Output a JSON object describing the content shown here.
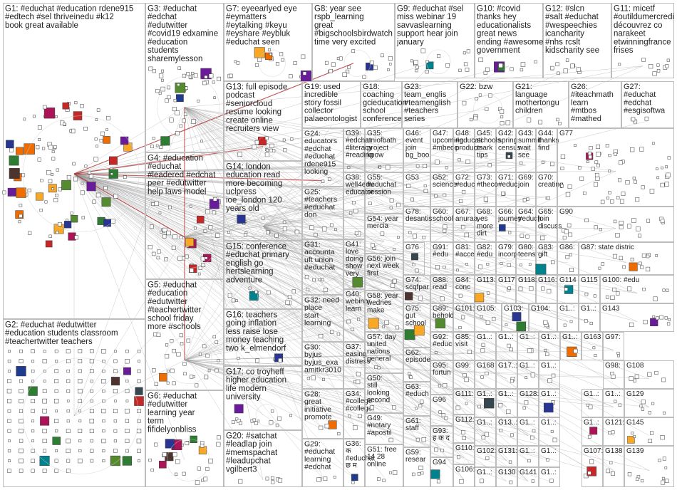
{
  "clusters": [
    {
      "id": "G1",
      "title": "G1: #educhat #education rdene915 #edtech #sel thriveinedu #k12 book great available"
    },
    {
      "id": "G2",
      "title": "G2: #educhat #edutwitter #education students classroom #teachertwitter teachers learning school support"
    },
    {
      "id": "G3",
      "title": "G3: #educhat #edchat #edutwitter #covid19 edxamine #education students sharemylesson teaching afteach"
    },
    {
      "id": "G4",
      "title": "G4: #education #educhat #leadered #edchat peer #edutwitter help laws model schools"
    },
    {
      "id": "G5",
      "title": "G5: #educhat #education #edutwitter #teachertwitter school friday more #schools #primary time"
    },
    {
      "id": "G6",
      "title": "G6: #educhat #edutwitter learning year term fifidelyonbliss remote emergency response last"
    },
    {
      "id": "G7",
      "title": "G7: eyeearlyed eye #eymatters #eytalking #keyu #eyshare #eybluk #educhat seen #teamec"
    },
    {
      "id": "G8",
      "title": "G8: year see rspb_learning great #bigschoolsbirdwatch time very excited flying start"
    },
    {
      "id": "G9",
      "title": "G9: #educhat #sel miss webinar 19 savvaslearning support hear join january"
    },
    {
      "id": "G10",
      "title": "G10: #covid thanks hey educationalists great news ending #awesome government"
    },
    {
      "id": "G11",
      "title": "G11: micetf #outildumercredi découvrez co narakeet etwinningfrance frises jdxmxojbde"
    },
    {
      "id": "G12",
      "title": "G12: #slcn #salt #educhat #wespeechies icancharity #nhs rcslt kidscharity see #mondaymotiv"
    },
    {
      "id": "G13",
      "title": "G13: full episode podcast #seniorcloud resume looking create online recruiters view"
    },
    {
      "id": "G14",
      "title": "G14: london education read more becoming uclpress ioe_london 120 years old"
    },
    {
      "id": "G15",
      "title": "G15: conference #educhat primary english go hertslearning adventure"
    },
    {
      "id": "G16",
      "title": "G16: teachers going inflation less raise lose money teaching two k_elmendorf"
    },
    {
      "id": "G17",
      "title": "G17: co troyheff higher education life modern university"
    },
    {
      "id": "G18",
      "title": "G18: coaching gcieducation school conference #educhat"
    },
    {
      "id": "G19",
      "title": "G19: used incredible story fossil collector palaeontologist mary anning"
    },
    {
      "id": "G20",
      "title": "G20: #satchat #leadlap join #memspachat #leadupchat vgilbert3"
    },
    {
      "id": "G21",
      "title": "G21: language mothertongu children experiences"
    },
    {
      "id": "G22",
      "title": "G22: bzw"
    },
    {
      "id": "G23",
      "title": "G23: team_englis #teamenglish #teachers series"
    },
    {
      "id": "G24",
      "title": "G24: educators #edchat #educhat rdene915 looking"
    },
    {
      "id": "G25",
      "title": "G25: #teachers #educhat don #teachers"
    },
    {
      "id": "G26",
      "title": "G26: #iteachmath learn #mtbos #mathed support"
    },
    {
      "id": "G27",
      "title": "G27: #educhat #edchat #esgisoftwa free"
    },
    {
      "id": "G28",
      "title": "G28: great initiative promote empathy"
    },
    {
      "id": "G29",
      "title": "G29: #educhat learning #edchat"
    },
    {
      "id": "G30",
      "title": "G30: byjus byjus_exa amitkr3010 eduminofi"
    },
    {
      "id": "G31",
      "title": "G31: accounta uft union #educhat"
    },
    {
      "id": "G32",
      "title": "G32: need place start learning watch"
    },
    {
      "id": "G33",
      "title": "G33: #educhat help hr demo"
    },
    {
      "id": "G34",
      "title": "G34: #college #collegel #educhat"
    },
    {
      "id": "G35",
      "title": "G35: uniofbath project know"
    },
    {
      "id": "G36",
      "title": "G36: क #educhat छ म महत व #bhent_r"
    },
    {
      "id": "G37",
      "title": "G37: easing distress australia"
    },
    {
      "id": "G38",
      "title": "G38: well4edu educator compass"
    },
    {
      "id": "G39",
      "title": "G39: #edchat #literacy #reading"
    },
    {
      "id": "G40",
      "title": "G40: webinar learn research"
    },
    {
      "id": "G41",
      "title": "G41: love doing show very lovely"
    },
    {
      "id": "G42",
      "title": "G42: spring census day"
    },
    {
      "id": "G43",
      "title": "G43: summit wait see rgv_tab"
    },
    {
      "id": "G44",
      "title": "G44: thanks find #teachp"
    },
    {
      "id": "G45",
      "title": "G45: schools mark tips 10th"
    },
    {
      "id": "G46",
      "title": "G46: event join bg_boo discuss"
    },
    {
      "id": "G47",
      "title": "G47: upcoming #mbedc wednes"
    },
    {
      "id": "G48",
      "title": "G48: #educati products help"
    },
    {
      "id": "G49",
      "title": "G49: #notary #apostil #apostil"
    },
    {
      "id": "G50",
      "title": "G50: still looking second school"
    },
    {
      "id": "G51",
      "title": "G51: free 14 28 online"
    },
    {
      "id": "G52",
      "title": "G52: science #educha"
    },
    {
      "id": "G53",
      "title": "G53"
    },
    {
      "id": "G54",
      "title": "G54: year mercia"
    },
    {
      "id": "G55",
      "title": "G55: #educhat session 6pm"
    },
    {
      "id": "G56",
      "title": "G56: join next week first"
    },
    {
      "id": "G57",
      "title": "G57: day united nations general"
    },
    {
      "id": "G58",
      "title": "G58: year wednes make"
    },
    {
      "id": "G59",
      "title": "G59: resear expect"
    },
    {
      "id": "G60",
      "title": "G60: school districts"
    },
    {
      "id": "G61",
      "title": "G61: staff time"
    },
    {
      "id": "G62",
      "title": "G62: episode listene"
    },
    {
      "id": "G63",
      "title": "G63: #educh #edutw"
    },
    {
      "id": "G64",
      "title": "G64: #educh #educa"
    },
    {
      "id": "G65",
      "title": "G65: join discuss habits"
    },
    {
      "id": "G66",
      "title": "G66: journey episod"
    },
    {
      "id": "G67",
      "title": "G67: anuraa attentio"
    },
    {
      "id": "G68",
      "title": "G68: yes more dirt mud"
    },
    {
      "id": "G69",
      "title": "G69: join severa"
    },
    {
      "id": "G70",
      "title": "G70: creating class"
    },
    {
      "id": "G71",
      "title": "G71: #educ #k12"
    },
    {
      "id": "G72",
      "title": "G72: #educ #learni"
    },
    {
      "id": "G73",
      "title": "G73: #theco story"
    },
    {
      "id": "G74",
      "title": "G74: scqfpar year"
    },
    {
      "id": "G75",
      "title": "G75: gut school unscho"
    },
    {
      "id": "G76",
      "title": "G76"
    },
    {
      "id": "G77",
      "title": "G77"
    },
    {
      "id": "G78",
      "title": "G78: desantis claims"
    },
    {
      "id": "G79",
      "title": "G79: incorp skills"
    },
    {
      "id": "G80",
      "title": "G80: teens maga"
    },
    {
      "id": "G81",
      "title": "G81: #acce #educ"
    },
    {
      "id": "G82",
      "title": "G82: #edu tutoria"
    },
    {
      "id": "G83",
      "title": "G83: gift givevalent"
    },
    {
      "id": "G84",
      "title": "G84: conc buyi"
    },
    {
      "id": "G85",
      "title": "G85: visit web"
    },
    {
      "id": "G86",
      "title": "G86: #educ"
    },
    {
      "id": "G87",
      "title": "G87: state distric"
    },
    {
      "id": "G88",
      "title": "G88: read use"
    },
    {
      "id": "G89",
      "title": "G89: behold edu"
    },
    {
      "id": "G90",
      "title": "G90"
    },
    {
      "id": "G91",
      "title": "G91: #edu #scico"
    },
    {
      "id": "G92",
      "title": "G92: #educ #edu"
    },
    {
      "id": "G93",
      "title": "G93: ह क द र न ख य म"
    },
    {
      "id": "G94",
      "title": "G94"
    },
    {
      "id": "G95",
      "title": "G95: fortun beautif"
    },
    {
      "id": "G96",
      "title": "G96"
    },
    {
      "id": "G97",
      "title": "G97: pand"
    },
    {
      "id": "G98",
      "title": "G98: #edu"
    },
    {
      "id": "G99",
      "title": "G99: boun"
    },
    {
      "id": "G100",
      "title": "G100: #edu"
    },
    {
      "id": "G101",
      "title": "G101: ipevo"
    },
    {
      "id": "G102",
      "title": "G102: jr"
    },
    {
      "id": "G103",
      "title": "G103: lindsa"
    },
    {
      "id": "G104",
      "title": "G104: appre"
    },
    {
      "id": "G105",
      "title": "G105: everyo"
    },
    {
      "id": "G106",
      "title": "G106: #care"
    },
    {
      "id": "G107",
      "title": "G107: scho"
    },
    {
      "id": "G108",
      "title": "G108"
    },
    {
      "id": "G109",
      "title": "G109: stud"
    },
    {
      "id": "G110",
      "title": "G110: few"
    },
    {
      "id": "G111",
      "title": "G111: mid"
    },
    {
      "id": "G112",
      "title": "G112: itv"
    },
    {
      "id": "G113",
      "title": "G113: right"
    },
    {
      "id": "G114",
      "title": "G114"
    },
    {
      "id": "G115",
      "title": "G115"
    },
    {
      "id": "G116",
      "title": "G116: distri"
    },
    {
      "id": "G117",
      "title": "G117"
    },
    {
      "id": "G118",
      "title": "G118: starti"
    },
    {
      "id": "G119",
      "title": "G1..: trai"
    },
    {
      "id": "G120",
      "title": "G1..: exp"
    },
    {
      "id": "G121",
      "title": "G121: #tea"
    },
    {
      "id": "G122",
      "title": "G1..: #ed"
    },
    {
      "id": "G123",
      "title": "G1..: 3rte"
    },
    {
      "id": "G124",
      "title": "G1..: relat"
    },
    {
      "id": "G125",
      "title": "G1..: muc"
    },
    {
      "id": "G126",
      "title": "G1..: path"
    },
    {
      "id": "G127",
      "title": "G17..: wri"
    },
    {
      "id": "G128",
      "title": "G128: navi"
    },
    {
      "id": "G129",
      "title": "G129"
    },
    {
      "id": "G130",
      "title": "G130"
    },
    {
      "id": "G131",
      "title": "G131: shar"
    },
    {
      "id": "G132",
      "title": "G1..: alre"
    },
    {
      "id": "G133",
      "title": "G13..: fun"
    },
    {
      "id": "G134",
      "title": "G1..: 99"
    },
    {
      "id": "G135",
      "title": "G1..: #tea"
    },
    {
      "id": "G136",
      "title": "G1..: #ed"
    },
    {
      "id": "G137",
      "title": "G1..: key"
    },
    {
      "id": "G138",
      "title": "G138"
    },
    {
      "id": "G139",
      "title": "G139"
    },
    {
      "id": "G140",
      "title": "G1..: sch"
    },
    {
      "id": "G141",
      "title": "G141"
    },
    {
      "id": "G142",
      "title": "G1..: idea"
    },
    {
      "id": "G143",
      "title": "G143"
    },
    {
      "id": "G144",
      "title": "G1..: being"
    },
    {
      "id": "G145",
      "title": "G145"
    },
    {
      "id": "G146",
      "title": "G1..: writ"
    },
    {
      "id": "G147",
      "title": "G1..: jok"
    },
    {
      "id": "G148",
      "title": "G1..: feel"
    },
    {
      "id": "G149",
      "title": "G1..: lear"
    },
    {
      "id": "G150",
      "title": "G1..: am"
    },
    {
      "id": "G151",
      "title": "G1..: loo"
    },
    {
      "id": "G152",
      "title": "G1..: ge"
    },
    {
      "id": "G163",
      "title": "G163"
    },
    {
      "id": "G168",
      "title": "G168"
    }
  ],
  "colors": {
    "cell_border": "#bdbdbd",
    "edge": "#9a9a9a",
    "highlight_edge": "#b22222",
    "node_palette": [
      "#1f3b8f",
      "#2e7d32",
      "#c62828",
      "#6a1b9a",
      "#00838f",
      "#ef6c00",
      "#4e342e",
      "#283593",
      "#558b2f",
      "#ad1457",
      "#37474f",
      "#f9a825"
    ]
  },
  "icons": [
    "profile-image-node",
    "hashtag-node"
  ]
}
